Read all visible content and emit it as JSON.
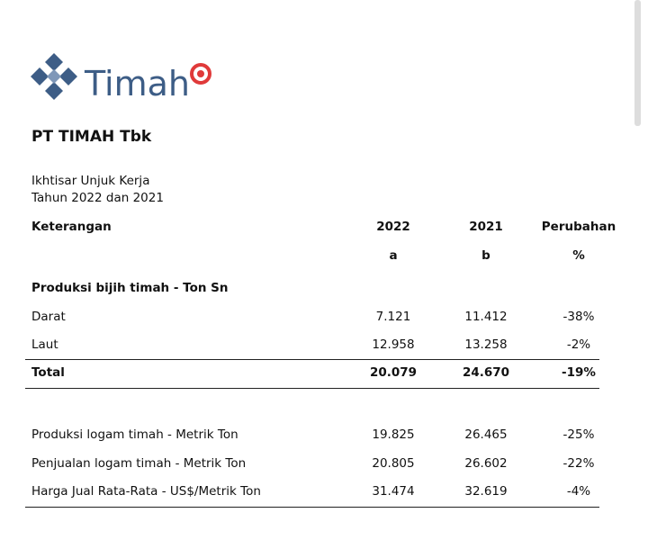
{
  "logo": {
    "text": "Timah"
  },
  "company": "PT TIMAH Tbk",
  "subtitle": [
    "Ikhtisar Unjuk Kerja",
    "Tahun 2022 dan 2021"
  ],
  "table": {
    "header": [
      "Keterangan",
      "2022",
      "2021",
      "Perubahan"
    ],
    "subheader": [
      "a",
      "b",
      "%"
    ],
    "section": "Produksi bijih timah - Ton Sn",
    "rows": [
      [
        "Darat",
        "7.121",
        "11.412",
        "-38%"
      ],
      [
        "Laut",
        "12.958",
        "13.258",
        "-2%"
      ]
    ],
    "total": [
      "Total",
      "20.079",
      "24.670",
      "-19%"
    ],
    "rows2": [
      [
        "Produksi logam timah - Metrik Ton",
        "19.825",
        "26.465",
        "-25%"
      ],
      [
        "Penjualan logam timah - Metrik Ton",
        "20.805",
        "26.602",
        "-22%"
      ],
      [
        "Harga Jual Rata-Rata - US$/Metrik Ton",
        "31.474",
        "32.619",
        "-4%"
      ]
    ]
  }
}
